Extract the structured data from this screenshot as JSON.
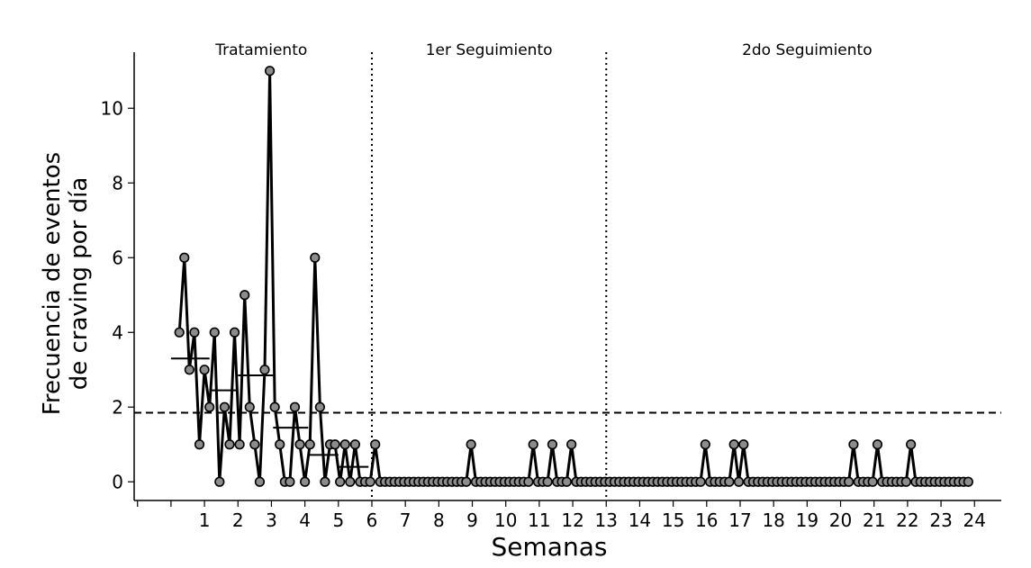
{
  "chart_data": {
    "type": "line",
    "xlabel": "Semanas",
    "ylabel_line1": "Frecuencia de eventos",
    "ylabel_line2": "de craving por día",
    "xlim": [
      -1.1,
      24.8
    ],
    "ylim": [
      -0.5,
      11.5
    ],
    "x_ticks": [
      1,
      2,
      3,
      4,
      5,
      6,
      7,
      8,
      9,
      10,
      11,
      12,
      13,
      14,
      15,
      16,
      17,
      18,
      19,
      20,
      21,
      22,
      23,
      24
    ],
    "y_ticks": [
      0,
      2,
      4,
      6,
      8,
      10
    ],
    "phases": [
      {
        "label": "Tratamiento",
        "x_center": 2.7
      },
      {
        "label": "1er Seguimiento",
        "x_center": 9.5
      },
      {
        "label": "2do Seguimiento",
        "x_center": 19.0
      }
    ],
    "phase_dividers_x": [
      6.0,
      13.0
    ],
    "reference_line_y": 1.85,
    "weekly_means": [
      {
        "x_start": 0.0,
        "x_end": 1.15,
        "y": 3.3
      },
      {
        "x_start": 1.15,
        "x_end": 2.0,
        "y": 2.45
      },
      {
        "x_start": 2.0,
        "x_end": 3.05,
        "y": 2.85
      },
      {
        "x_start": 3.05,
        "x_end": 4.1,
        "y": 1.45
      },
      {
        "x_start": 4.1,
        "x_end": 5.0,
        "y": 0.72
      },
      {
        "x_start": 5.0,
        "x_end": 5.9,
        "y": 0.4
      }
    ],
    "series": [
      {
        "x": [
          0.25,
          0.4,
          0.55,
          0.7,
          0.85,
          1.0,
          1.15,
          1.3,
          1.45,
          1.6,
          1.75,
          1.9,
          2.05,
          2.2,
          2.35,
          2.5,
          2.65,
          2.8,
          2.95,
          3.1,
          3.25,
          3.4,
          3.55,
          3.7,
          3.85,
          4.0,
          4.15,
          4.3,
          4.45,
          4.6,
          4.75,
          4.9,
          5.05,
          5.2,
          5.35,
          5.5,
          5.65,
          5.8,
          5.95,
          6.1
        ],
        "y": [
          4,
          6,
          3,
          4,
          1,
          3,
          2,
          4,
          0,
          2,
          1,
          4,
          1,
          5,
          2,
          1,
          0,
          3,
          11,
          2,
          1,
          0,
          0,
          2,
          1,
          0,
          1,
          6,
          2,
          0,
          1,
          1,
          0,
          1,
          0,
          1,
          0,
          0,
          0,
          1
        ],
        "note": "tratamiento"
      }
    ],
    "followup_start": 6.25,
    "followup_end": 23.95,
    "followup_step": 0.1428,
    "followup_ones": [
      9.0,
      10.85,
      11.45,
      12.0,
      16.0,
      16.85,
      17.05,
      20.4,
      21.15,
      22.15
    ]
  }
}
